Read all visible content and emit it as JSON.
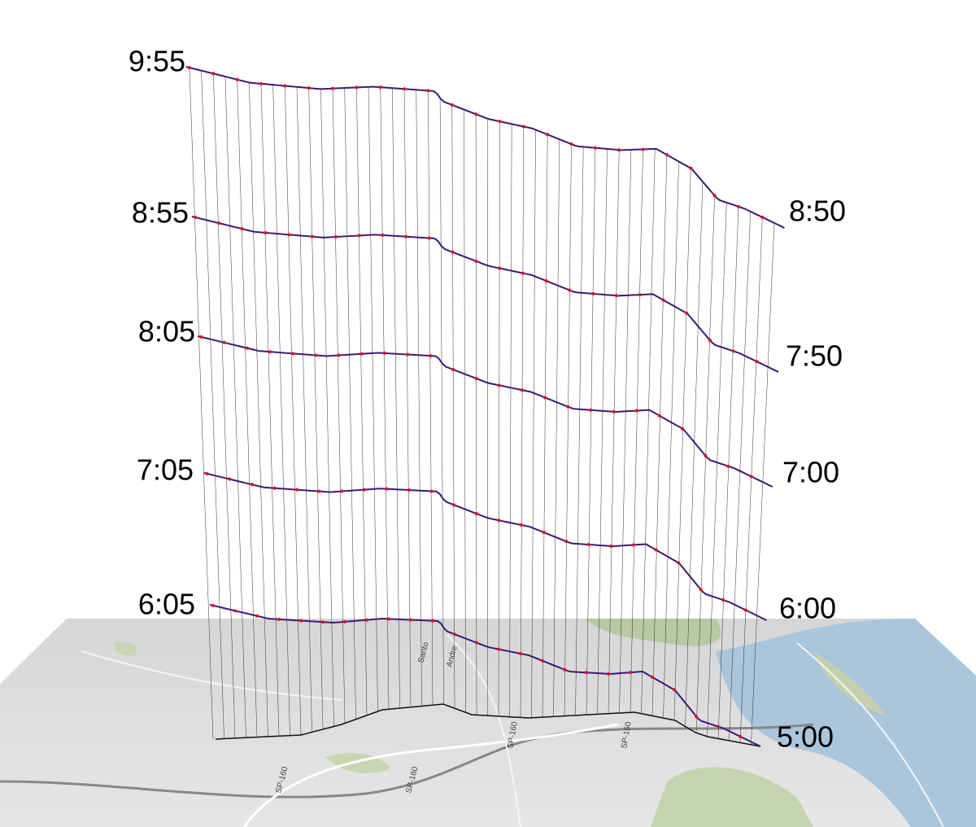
{
  "labels_left": [
    "9:55",
    "8:55",
    "8:05",
    "7:05",
    "6:05"
  ],
  "labels_right": [
    "8:50",
    "7:50",
    "7:00",
    "6:00",
    "5:00"
  ],
  "map_labels": [
    "Santo",
    "Andre",
    "SP-160",
    "SP-160",
    "SP-160",
    "SP-160"
  ]
}
